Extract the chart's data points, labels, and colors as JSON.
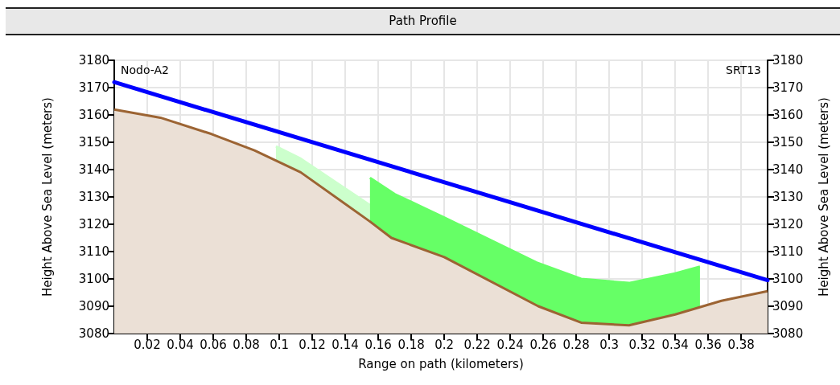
{
  "chart_data": {
    "type": "area",
    "title": "Path Profile",
    "xlabel": "Range on path (kilometers)",
    "ylabel": "Height Above Sea Level (meters)",
    "y2label": "Height Above Sea Level (meters)",
    "annotations": [
      "Nodo-A2",
      "SRT13"
    ],
    "xlim": [
      0,
      0.396
    ],
    "xticks": [
      0.02,
      0.04,
      0.06,
      0.08,
      0.1,
      0.12,
      0.14,
      0.16,
      0.18,
      0.2,
      0.22,
      0.24,
      0.26,
      0.28,
      0.3,
      0.32,
      0.34,
      0.36,
      0.38
    ],
    "ylim": [
      3080,
      3180
    ],
    "yticks": [
      3080,
      3090,
      3100,
      3110,
      3120,
      3130,
      3140,
      3150,
      3160,
      3170,
      3180
    ],
    "y2lim": [
      3080,
      3180
    ],
    "y2ticks": [
      3080,
      3090,
      3100,
      3110,
      3120,
      3130,
      3140,
      3150,
      3160,
      3170,
      3180
    ],
    "grid": true,
    "series": [
      {
        "color": "#ccffcc",
        "x": [
          0.098,
          0.113,
          0.155
        ],
        "values": [
          3148.5,
          3144,
          3127
        ]
      },
      {
        "color": "#66ff66",
        "x": [
          0.155,
          0.17,
          0.2,
          0.256,
          0.283,
          0.312,
          0.34,
          0.355
        ],
        "values": [
          3137,
          3131,
          3122.5,
          3106,
          3100,
          3098.5,
          3102,
          3104.5
        ]
      },
      {
        "color": "#9c6433",
        "x": [
          0,
          0.028,
          0.059,
          0.085,
          0.113,
          0.155,
          0.168,
          0.2,
          0.257,
          0.283,
          0.312,
          0.34,
          0.368,
          0.396
        ],
        "values": [
          3162,
          3159,
          3153,
          3147,
          3139,
          3121,
          3115,
          3108,
          3090,
          3084,
          3083,
          3087,
          3092,
          3095.5
        ]
      },
      {
        "type": "line",
        "color": "#0000ff",
        "x": [
          0,
          0.396
        ],
        "values": [
          3172,
          3099.5
        ]
      }
    ]
  }
}
